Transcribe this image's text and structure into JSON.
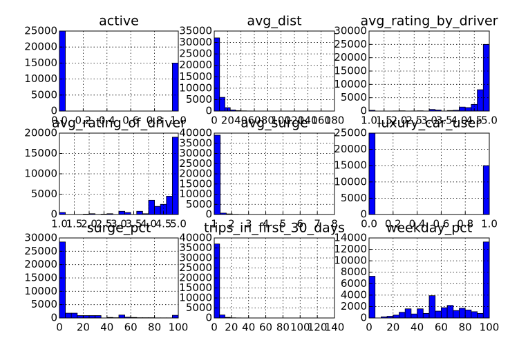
{
  "chart_data": [
    {
      "type": "histogram",
      "title": "active",
      "color": "#0000ff",
      "grid": true,
      "bins": [
        0,
        0.05,
        0.1,
        0.15,
        0.2,
        0.25,
        0.3,
        0.35,
        0.4,
        0.45,
        0.5,
        0.55,
        0.6,
        0.65,
        0.7,
        0.75,
        0.8,
        0.85,
        0.9,
        0.95,
        1
      ],
      "values": [
        25000,
        0,
        0,
        0,
        0,
        0,
        0,
        0,
        0,
        0,
        0,
        0,
        0,
        0,
        0,
        0,
        0,
        0,
        0,
        15000
      ],
      "xlim": [
        0,
        1
      ],
      "xticks": [
        {
          "value": 0,
          "label": "0.0"
        },
        0.2,
        0.4,
        0.6,
        0.8,
        {
          "value": 1,
          "label": "1.0"
        }
      ],
      "ylim": [
        0,
        25000
      ],
      "yticks": [
        0,
        5000,
        10000,
        15000,
        20000,
        25000
      ]
    },
    {
      "type": "histogram",
      "title": "avg_dist",
      "color": "#0000ff",
      "grid": true,
      "bins": [
        0,
        8,
        16,
        24,
        32,
        40,
        48,
        56,
        64,
        72,
        80,
        88,
        96,
        104,
        112,
        120,
        128,
        136,
        144,
        152,
        160
      ],
      "values": [
        32000,
        6000,
        1500,
        500,
        200,
        100,
        50,
        30,
        20,
        10,
        5,
        5,
        2,
        2,
        1,
        1,
        1,
        0,
        0,
        1
      ],
      "xlim": [
        0,
        180
      ],
      "xticks": [
        0,
        20,
        40,
        60,
        80,
        100,
        120,
        140,
        160,
        180
      ],
      "ylim": [
        0,
        35000
      ],
      "yticks": [
        0,
        5000,
        10000,
        15000,
        20000,
        25000,
        30000,
        35000
      ]
    },
    {
      "type": "histogram",
      "title": "avg_rating_by_driver",
      "color": "#0000ff",
      "grid": true,
      "bins": [
        1,
        1.2,
        1.4,
        1.6,
        1.8,
        2,
        2.2,
        2.4,
        2.6,
        2.8,
        3,
        3.2,
        3.4,
        3.6,
        3.8,
        4,
        4.2,
        4.4,
        4.6,
        4.8,
        5
      ],
      "values": [
        300,
        0,
        0,
        0,
        50,
        100,
        0,
        50,
        100,
        0,
        600,
        400,
        0,
        200,
        300,
        1500,
        1300,
        2500,
        8000,
        25000
      ],
      "xlim": [
        1,
        5
      ],
      "xticks": [
        {
          "value": 1,
          "label": "1.0"
        },
        1.5,
        {
          "value": 2,
          "label": "2.0"
        },
        2.5,
        {
          "value": 3,
          "label": "3.0"
        },
        3.5,
        {
          "value": 4,
          "label": "4.0"
        },
        4.5,
        {
          "value": 5,
          "label": "5.0"
        }
      ],
      "ylim": [
        0,
        30000
      ],
      "yticks": [
        0,
        5000,
        10000,
        15000,
        20000,
        25000,
        30000
      ]
    },
    {
      "type": "histogram",
      "title": "avg_rating_of_driver",
      "color": "#0000ff",
      "grid": true,
      "bins": [
        1,
        1.2,
        1.4,
        1.6,
        1.8,
        2,
        2.2,
        2.4,
        2.6,
        2.8,
        3,
        3.2,
        3.4,
        3.6,
        3.8,
        4,
        4.2,
        4.4,
        4.6,
        4.8,
        5
      ],
      "values": [
        500,
        0,
        0,
        0,
        100,
        200,
        0,
        100,
        200,
        0,
        800,
        500,
        0,
        800,
        200,
        3500,
        2000,
        2500,
        4500,
        19000
      ],
      "xlim": [
        1,
        5
      ],
      "xticks": [
        {
          "value": 1,
          "label": "1.0"
        },
        1.5,
        {
          "value": 2,
          "label": "2.0"
        },
        2.5,
        {
          "value": 3,
          "label": "3.0"
        },
        3.5,
        {
          "value": 4,
          "label": "4.0"
        },
        4.5,
        {
          "value": 5,
          "label": "5.0"
        }
      ],
      "ylim": [
        0,
        20000
      ],
      "yticks": [
        0,
        5000,
        10000,
        15000,
        20000
      ]
    },
    {
      "type": "histogram",
      "title": "avg_surge",
      "color": "#0000ff",
      "grid": true,
      "bins": [
        1,
        1.35,
        1.7,
        2.05,
        2.4,
        2.75,
        3.1,
        3.45,
        3.8,
        4.15,
        4.5,
        4.85,
        5.2,
        5.55,
        5.9,
        6.25,
        6.6,
        6.95,
        7.3,
        7.65,
        8
      ],
      "values": [
        39000,
        700,
        300,
        100,
        50,
        30,
        10,
        5,
        3,
        2,
        1,
        1,
        1,
        0,
        0,
        0,
        0,
        0,
        0,
        1
      ],
      "xlim": [
        1,
        8
      ],
      "xticks": [
        1,
        2,
        3,
        4,
        5,
        6,
        7,
        8
      ],
      "ylim": [
        0,
        40000
      ],
      "yticks": [
        0,
        5000,
        10000,
        15000,
        20000,
        25000,
        30000,
        35000,
        40000
      ]
    },
    {
      "type": "histogram",
      "title": "luxury_car_user",
      "color": "#0000ff",
      "grid": true,
      "bins": [
        0,
        0.05,
        0.1,
        0.15,
        0.2,
        0.25,
        0.3,
        0.35,
        0.4,
        0.45,
        0.5,
        0.55,
        0.6,
        0.65,
        0.7,
        0.75,
        0.8,
        0.85,
        0.9,
        0.95,
        1
      ],
      "values": [
        25000,
        0,
        0,
        0,
        0,
        0,
        0,
        0,
        0,
        0,
        0,
        0,
        0,
        0,
        0,
        0,
        0,
        0,
        0,
        15000
      ],
      "xlim": [
        0,
        1
      ],
      "xticks": [
        {
          "value": 0,
          "label": "0.0"
        },
        0.2,
        0.4,
        0.6,
        0.8,
        {
          "value": 1,
          "label": "1.0"
        }
      ],
      "ylim": [
        0,
        25000
      ],
      "yticks": [
        0,
        5000,
        10000,
        15000,
        20000,
        25000
      ]
    },
    {
      "type": "histogram",
      "title": "surge_pct",
      "color": "#0000ff",
      "grid": true,
      "bins": [
        0,
        5,
        10,
        15,
        20,
        25,
        30,
        35,
        40,
        45,
        50,
        55,
        60,
        65,
        70,
        75,
        80,
        85,
        90,
        95,
        100
      ],
      "values": [
        28500,
        1800,
        1800,
        900,
        900,
        900,
        900,
        0,
        200,
        100,
        1100,
        300,
        200,
        100,
        100,
        100,
        50,
        50,
        50,
        1000
      ],
      "xlim": [
        0,
        100
      ],
      "xticks": [
        0,
        20,
        40,
        60,
        80,
        100
      ],
      "ylim": [
        0,
        30000
      ],
      "yticks": [
        0,
        5000,
        10000,
        15000,
        20000,
        25000,
        30000
      ]
    },
    {
      "type": "histogram",
      "title": "trips_in_first_30_days",
      "color": "#0000ff",
      "grid": true,
      "bins": [
        0,
        6.25,
        12.5,
        18.75,
        25,
        31.25,
        37.5,
        43.75,
        50,
        56.25,
        62.5,
        68.75,
        75,
        81.25,
        87.5,
        93.75,
        100,
        106.25,
        112.5,
        118.75,
        125
      ],
      "values": [
        37000,
        1500,
        300,
        100,
        50,
        20,
        10,
        5,
        3,
        2,
        1,
        1,
        1,
        0,
        0,
        0,
        0,
        0,
        0,
        1
      ],
      "xlim": [
        0,
        140
      ],
      "xticks": [
        0,
        20,
        40,
        60,
        80,
        100,
        120,
        140
      ],
      "ylim": [
        0,
        40000
      ],
      "yticks": [
        0,
        5000,
        10000,
        15000,
        20000,
        25000,
        30000,
        35000,
        40000
      ]
    },
    {
      "type": "histogram",
      "title": "weekday_pct",
      "color": "#0000ff",
      "grid": true,
      "bins": [
        0,
        5,
        10,
        15,
        20,
        25,
        30,
        35,
        40,
        45,
        50,
        55,
        60,
        65,
        70,
        75,
        80,
        85,
        90,
        95,
        100
      ],
      "values": [
        7300,
        0,
        200,
        300,
        500,
        1000,
        1600,
        700,
        1600,
        800,
        3900,
        1200,
        1800,
        2200,
        1300,
        1700,
        1400,
        1100,
        800,
        13300
      ],
      "xlim": [
        0,
        100
      ],
      "xticks": [
        0,
        20,
        40,
        60,
        80,
        100
      ],
      "ylim": [
        0,
        14000
      ],
      "yticks": [
        0,
        2000,
        4000,
        6000,
        8000,
        10000,
        12000,
        14000
      ]
    }
  ]
}
